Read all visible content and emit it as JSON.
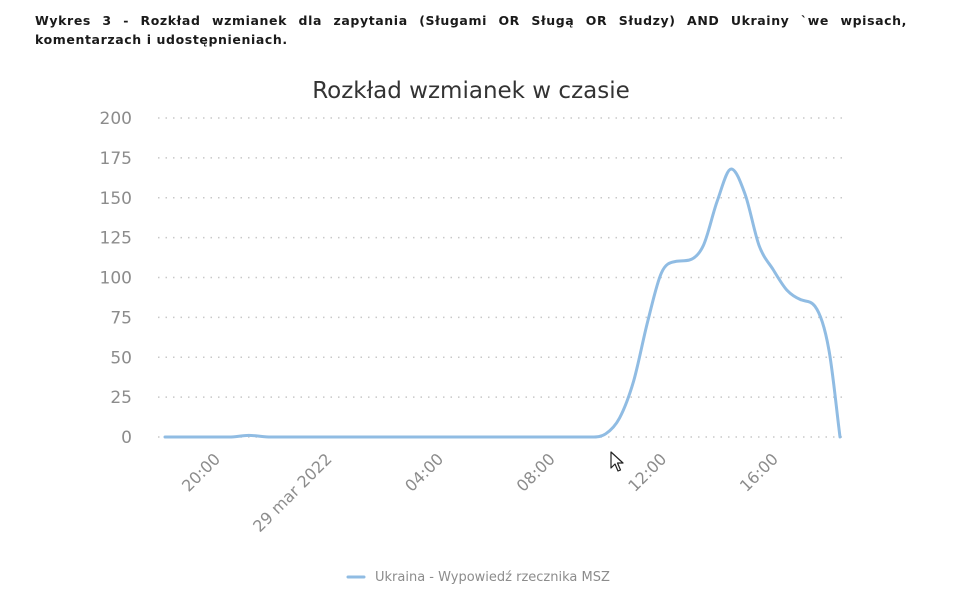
{
  "caption": "Wykres 3 - Rozkład wzmianek dla zapytania (Sługami OR Sługą OR Słudzy)  AND Ukrainy  `we wpisach, komentarzach i udostępnieniach.",
  "chart_data": {
    "type": "line",
    "title": "Rozkład wzmianek w czasie",
    "xlabel": "",
    "ylabel": "",
    "ylim": [
      0,
      200
    ],
    "yticks": [
      0,
      25,
      50,
      75,
      100,
      125,
      150,
      175,
      200
    ],
    "x_unit": "hours since 28 mar 2022 00:00",
    "xlim": [
      18.2,
      42.4
    ],
    "xticks": [
      {
        "x": 20,
        "label": "20:00"
      },
      {
        "x": 24,
        "label": "29 mar 2022"
      },
      {
        "x": 28,
        "label": "04:00"
      },
      {
        "x": 32,
        "label": "08:00"
      },
      {
        "x": 36,
        "label": "12:00"
      },
      {
        "x": 40,
        "label": "16:00"
      }
    ],
    "grid": true,
    "legend_position": "bottom-center",
    "series": [
      {
        "name": "Ukraina - Wypowiedź rzecznika MSZ",
        "color": "#90bce3",
        "x": [
          18.2,
          20.5,
          21.2,
          22,
          26,
          30,
          32,
          33,
          33.5,
          34,
          34.5,
          35,
          35.5,
          36,
          36.5,
          37,
          37.5,
          38,
          38.5,
          39,
          39.5,
          40,
          40.5,
          41,
          41.5,
          42,
          42.4
        ],
        "values": [
          0,
          0,
          1,
          0,
          0,
          0,
          0,
          0,
          0,
          2,
          12,
          35,
          72,
          103,
          110,
          111,
          120,
          148,
          168,
          152,
          120,
          105,
          92,
          86,
          82,
          55,
          0
        ]
      }
    ]
  }
}
